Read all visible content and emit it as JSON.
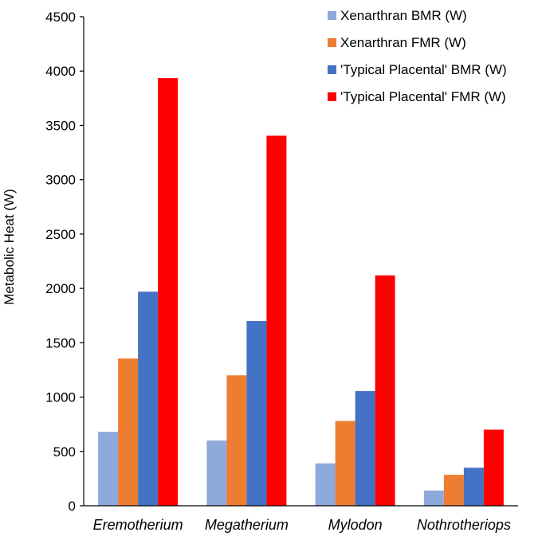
{
  "chart_data": {
    "type": "bar",
    "title": "",
    "xlabel": "",
    "ylabel": "Metabolic Heat (W)",
    "ylim": [
      0,
      4500
    ],
    "yticks": [
      0,
      500,
      1000,
      1500,
      2000,
      2500,
      3000,
      3500,
      4000,
      4500
    ],
    "grid": false,
    "legend_position": "top-right",
    "categories": [
      "Eremotherium",
      "Megatherium",
      "Mylodon",
      "Nothrotheriops"
    ],
    "series": [
      {
        "name": "Xenarthran BMR (W)",
        "color": "#8eaadb",
        "values": [
          680,
          600,
          390,
          140
        ]
      },
      {
        "name": "Xenarthran FMR (W)",
        "color": "#ed7d31",
        "values": [
          1355,
          1200,
          780,
          285
        ]
      },
      {
        "name": "'Typical Placental' BMR (W)",
        "color": "#4472c4",
        "values": [
          1970,
          1700,
          1055,
          350
        ]
      },
      {
        "name": "'Typical Placental' FMR (W)",
        "color": "#ff0000",
        "values": [
          3935,
          3405,
          2120,
          700
        ]
      }
    ]
  }
}
